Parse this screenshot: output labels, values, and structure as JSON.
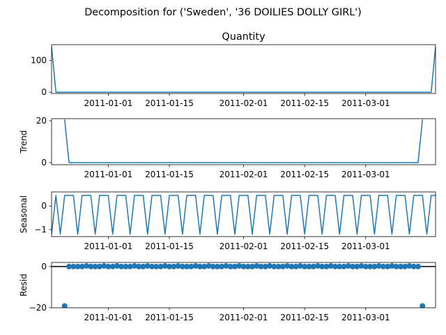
{
  "figure": {
    "suptitle": "Decomposition for ('Sweden', '36 DOILIES DOLLY GIRL')",
    "colors": {
      "line": "#1f77b4",
      "axes": "#000000",
      "background": "#ffffff"
    }
  },
  "chart_data": [
    {
      "type": "line",
      "id": "observed",
      "title": "Quantity",
      "ylabel": "",
      "x_start": "2010-12-19",
      "x_end": "2011-03-17",
      "ylim": [
        -4,
        150
      ],
      "yticks": [
        0,
        100
      ],
      "xticks": [
        "2011-01-01",
        "2011-01-15",
        "2011-02-01",
        "2011-02-15",
        "2011-03-01"
      ],
      "points": [
        [
          "2010-12-19",
          144
        ],
        [
          "2010-12-20",
          0
        ],
        [
          "2011-03-16",
          0
        ],
        [
          "2011-03-17",
          144
        ]
      ]
    },
    {
      "type": "line",
      "id": "trend",
      "title": "",
      "ylabel": "Trend",
      "x_start": "2010-12-19",
      "x_end": "2011-03-17",
      "ylim": [
        -1,
        21
      ],
      "yticks": [
        0,
        20
      ],
      "xticks": [
        "2011-01-01",
        "2011-01-15",
        "2011-02-01",
        "2011-02-15",
        "2011-03-01"
      ],
      "points": [
        [
          "2010-12-22",
          20.6
        ],
        [
          "2010-12-23",
          0
        ],
        [
          "2011-03-13",
          0
        ],
        [
          "2011-03-14",
          20.6
        ]
      ]
    },
    {
      "type": "line",
      "id": "seasonal",
      "title": "",
      "ylabel": "Seasonal",
      "x_start": "2010-12-19",
      "x_end": "2011-03-17",
      "ylim": [
        -1.3,
        0.6
      ],
      "yticks": [
        -1,
        0
      ],
      "xticks": [
        "2011-01-01",
        "2011-01-15",
        "2011-02-01",
        "2011-02-15",
        "2011-03-01"
      ],
      "period_pattern": [
        -1.2,
        0.45,
        0.45,
        0.45
      ],
      "pattern_start": "2010-12-21",
      "first_point": [
        "2010-12-19",
        -1.2
      ],
      "second_point": [
        "2010-12-20",
        0.45
      ]
    },
    {
      "type": "scatter",
      "id": "resid",
      "title": "",
      "ylabel": "Resid",
      "x_start": "2010-12-19",
      "x_end": "2011-03-17",
      "ylim": [
        -20,
        2
      ],
      "yticks": [
        -20,
        0
      ],
      "xticks": [
        "2011-01-01",
        "2011-01-15",
        "2011-02-01",
        "2011-02-15",
        "2011-03-01"
      ],
      "zero_line": 0,
      "resid_points": [
        [
          "2010-12-22",
          -19.1
        ],
        [
          "2010-12-23",
          0
        ],
        [
          "2010-12-24",
          0
        ],
        [
          "2010-12-25",
          0
        ],
        [
          "2010-12-26",
          0
        ],
        [
          "2010-12-27",
          0.3
        ],
        [
          "2010-12-28",
          0
        ],
        [
          "2010-12-29",
          0
        ],
        [
          "2010-12-30",
          0
        ],
        [
          "2010-12-31",
          0.3
        ],
        [
          "2011-01-01",
          0
        ],
        [
          "2011-01-02",
          0
        ],
        [
          "2011-01-03",
          0.3
        ],
        [
          "2011-01-04",
          0
        ],
        [
          "2011-01-05",
          0
        ],
        [
          "2011-01-06",
          0
        ],
        [
          "2011-01-07",
          0.3
        ],
        [
          "2011-01-08",
          0
        ],
        [
          "2011-01-09",
          0
        ],
        [
          "2011-01-10",
          0.3
        ],
        [
          "2011-01-11",
          0
        ],
        [
          "2011-01-12",
          0
        ],
        [
          "2011-01-13",
          0
        ],
        [
          "2011-01-14",
          0.3
        ],
        [
          "2011-01-15",
          0
        ],
        [
          "2011-01-16",
          0
        ],
        [
          "2011-01-17",
          0.3
        ],
        [
          "2011-01-18",
          0
        ],
        [
          "2011-01-19",
          0
        ],
        [
          "2011-01-20",
          0
        ],
        [
          "2011-01-21",
          0.3
        ],
        [
          "2011-01-22",
          0
        ],
        [
          "2011-01-23",
          0
        ],
        [
          "2011-01-24",
          0.3
        ],
        [
          "2011-01-25",
          0
        ],
        [
          "2011-01-26",
          0
        ],
        [
          "2011-01-27",
          0
        ],
        [
          "2011-01-28",
          0.3
        ],
        [
          "2011-01-29",
          0
        ],
        [
          "2011-01-30",
          0
        ],
        [
          "2011-01-31",
          0.3
        ],
        [
          "2011-02-01",
          0
        ],
        [
          "2011-02-02",
          0
        ],
        [
          "2011-02-03",
          0
        ],
        [
          "2011-02-04",
          0.3
        ],
        [
          "2011-02-05",
          0
        ],
        [
          "2011-02-06",
          0
        ],
        [
          "2011-02-07",
          0.3
        ],
        [
          "2011-02-08",
          0
        ],
        [
          "2011-02-09",
          0
        ],
        [
          "2011-02-10",
          0
        ],
        [
          "2011-02-11",
          0.3
        ],
        [
          "2011-02-12",
          0
        ],
        [
          "2011-02-13",
          0
        ],
        [
          "2011-02-14",
          0.3
        ],
        [
          "2011-02-15",
          0
        ],
        [
          "2011-02-16",
          0
        ],
        [
          "2011-02-17",
          0
        ],
        [
          "2011-02-18",
          0.3
        ],
        [
          "2011-02-19",
          0
        ],
        [
          "2011-02-20",
          0
        ],
        [
          "2011-02-21",
          0.3
        ],
        [
          "2011-02-22",
          0
        ],
        [
          "2011-02-23",
          0
        ],
        [
          "2011-02-24",
          0
        ],
        [
          "2011-02-25",
          0.3
        ],
        [
          "2011-02-26",
          0
        ],
        [
          "2011-02-27",
          0
        ],
        [
          "2011-02-28",
          0.3
        ],
        [
          "2011-03-01",
          0
        ],
        [
          "2011-03-02",
          0
        ],
        [
          "2011-03-03",
          0
        ],
        [
          "2011-03-04",
          0.3
        ],
        [
          "2011-03-05",
          0
        ],
        [
          "2011-03-06",
          0
        ],
        [
          "2011-03-07",
          0.3
        ],
        [
          "2011-03-08",
          0
        ],
        [
          "2011-03-09",
          0
        ],
        [
          "2011-03-10",
          0
        ],
        [
          "2011-03-11",
          0.3
        ],
        [
          "2011-03-12",
          0
        ],
        [
          "2011-03-13",
          0
        ],
        [
          "2011-03-14",
          -19.1
        ]
      ]
    }
  ]
}
